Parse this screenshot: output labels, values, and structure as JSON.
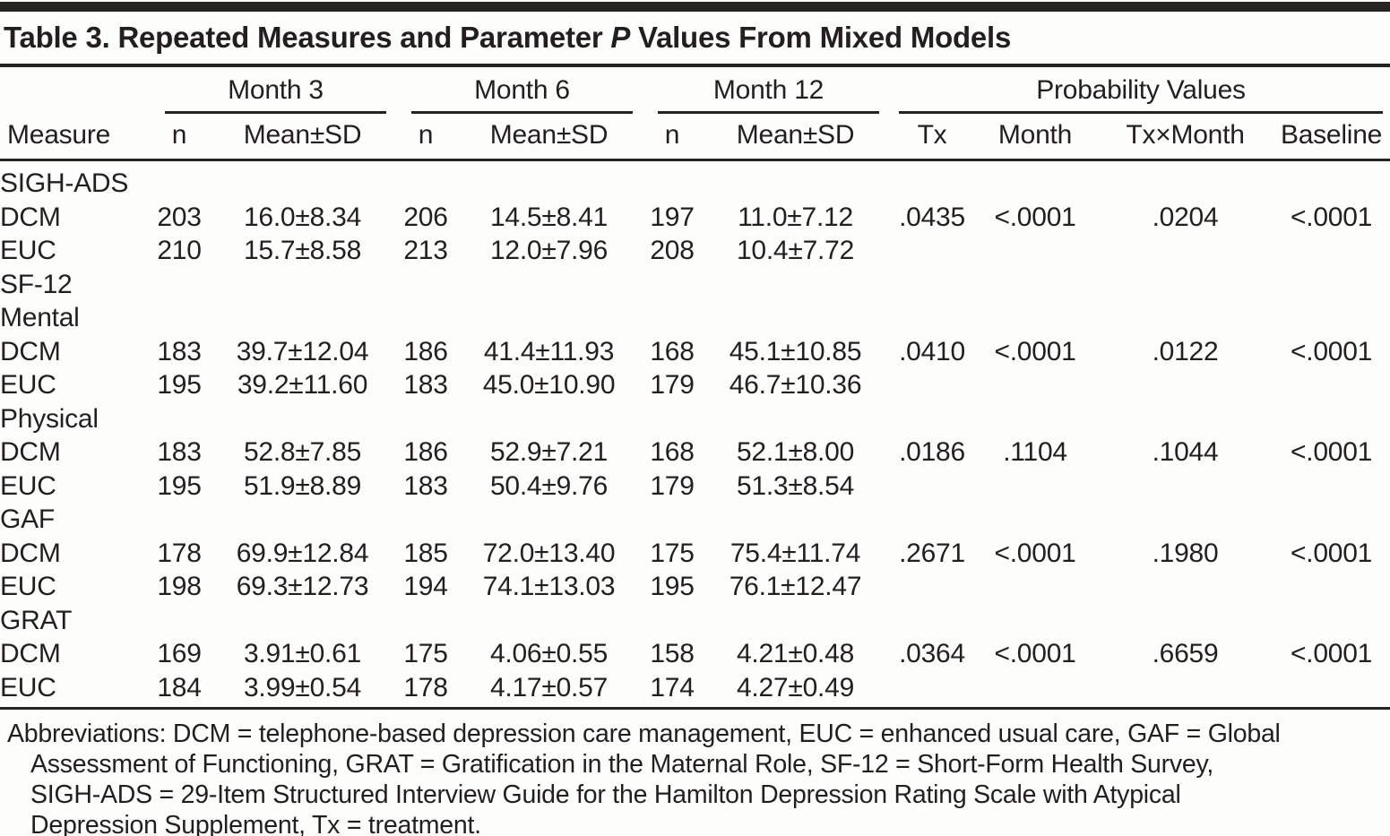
{
  "title": {
    "before": "Table 3. Repeated Measures and Parameter ",
    "italic": "P",
    "after": " Values From Mixed Models"
  },
  "table": {
    "group_headers": [
      "Month 3",
      "Month 6",
      "Month 12",
      "Probability Values"
    ],
    "col_headers": [
      "Measure",
      "n",
      "Mean±SD",
      "n",
      "Mean±SD",
      "n",
      "Mean±SD",
      "Tx",
      "Month",
      "Tx×Month",
      "Baseline"
    ],
    "rows": [
      {
        "label": "SIGH-ADS",
        "indent": 0,
        "cells": [
          "",
          "",
          "",
          "",
          "",
          "",
          "",
          "",
          "",
          ""
        ]
      },
      {
        "label": "DCM",
        "indent": 1,
        "cells": [
          "203",
          "16.0±8.34",
          "206",
          "14.5±8.41",
          "197",
          "11.0±7.12",
          ".0435",
          "<.0001",
          ".0204",
          "<.0001"
        ]
      },
      {
        "label": "EUC",
        "indent": 1,
        "cells": [
          "210",
          "15.7±8.58",
          "213",
          "12.0±7.96",
          "208",
          "10.4±7.72",
          "",
          "",
          "",
          ""
        ]
      },
      {
        "label": "SF-12",
        "indent": 0,
        "cells": [
          "",
          "",
          "",
          "",
          "",
          "",
          "",
          "",
          "",
          ""
        ]
      },
      {
        "label": "Mental",
        "indent": 1,
        "cells": [
          "",
          "",
          "",
          "",
          "",
          "",
          "",
          "",
          "",
          ""
        ]
      },
      {
        "label": "DCM",
        "indent": 2,
        "cells": [
          "183",
          "39.7±12.04",
          "186",
          "41.4±11.93",
          "168",
          "45.1±10.85",
          ".0410",
          "<.0001",
          ".0122",
          "<.0001"
        ]
      },
      {
        "label": "EUC",
        "indent": 2,
        "cells": [
          "195",
          "39.2±11.60",
          "183",
          "45.0±10.90",
          "179",
          "46.7±10.36",
          "",
          "",
          "",
          ""
        ]
      },
      {
        "label": "Physical",
        "indent": 1,
        "cells": [
          "",
          "",
          "",
          "",
          "",
          "",
          "",
          "",
          "",
          ""
        ]
      },
      {
        "label": "DCM",
        "indent": 2,
        "cells": [
          "183",
          "52.8±7.85",
          "186",
          "52.9±7.21",
          "168",
          "52.1±8.00",
          ".0186",
          ".1104",
          ".1044",
          "<.0001"
        ]
      },
      {
        "label": "EUC",
        "indent": 2,
        "cells": [
          "195",
          "51.9±8.89",
          "183",
          "50.4±9.76",
          "179",
          "51.3±8.54",
          "",
          "",
          "",
          ""
        ]
      },
      {
        "label": "GAF",
        "indent": 0,
        "cells": [
          "",
          "",
          "",
          "",
          "",
          "",
          "",
          "",
          "",
          ""
        ]
      },
      {
        "label": "DCM",
        "indent": 1,
        "cells": [
          "178",
          "69.9±12.84",
          "185",
          "72.0±13.40",
          "175",
          "75.4±11.74",
          ".2671",
          "<.0001",
          ".1980",
          "<.0001"
        ]
      },
      {
        "label": "EUC",
        "indent": 1,
        "cells": [
          "198",
          "69.3±12.73",
          "194",
          "74.1±13.03",
          "195",
          "76.1±12.47",
          "",
          "",
          "",
          ""
        ]
      },
      {
        "label": "GRAT",
        "indent": 0,
        "cells": [
          "",
          "",
          "",
          "",
          "",
          "",
          "",
          "",
          "",
          ""
        ]
      },
      {
        "label": "DCM",
        "indent": 1,
        "cells": [
          "169",
          "3.91±0.61",
          "175",
          "4.06±0.55",
          "158",
          "4.21±0.48",
          ".0364",
          "<.0001",
          ".6659",
          "<.0001"
        ]
      },
      {
        "label": "EUC",
        "indent": 1,
        "cells": [
          "184",
          "3.99±0.54",
          "178",
          "4.17±0.57",
          "174",
          "4.27±0.49",
          "",
          "",
          "",
          ""
        ]
      }
    ]
  },
  "footnote_lines": [
    "Abbreviations: DCM = telephone-based depression care management, EUC = enhanced usual care, GAF = Global",
    "Assessment of Functioning, GRAT = Gratification in the Maternal Role, SF-12 = Short-Form Health Survey,",
    "SIGH-ADS = 29-Item Structured Interview Guide for the Hamilton Depression Rating Scale with Atypical",
    "Depression Supplement, Tx = treatment."
  ],
  "colors": {
    "text": "#231f20",
    "rule": "#262423",
    "background": "#fdfdfc"
  }
}
